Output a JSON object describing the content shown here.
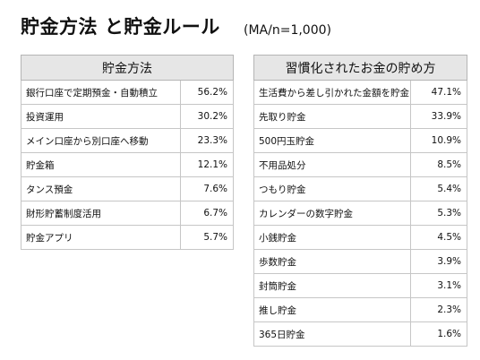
{
  "title": "貯金方法 と貯金ルール",
  "subtitle": "(MA/n=1,000)",
  "left_table": {
    "header": "貯金方法",
    "rows": [
      {
        "label": "銀行口座で定期預金・自動積立",
        "value": "56.2%"
      },
      {
        "label": "投資運用",
        "value": "30.2%"
      },
      {
        "label": "メイン口座から別口座へ移動",
        "value": "23.3%"
      },
      {
        "label": "貯金箱",
        "value": "12.1%"
      },
      {
        "label": "タンス預金",
        "value": "7.6%"
      },
      {
        "label": "財形貯蓄制度活用",
        "value": "6.7%"
      },
      {
        "label": "貯金アプリ",
        "value": "5.7%"
      }
    ]
  },
  "right_table": {
    "header": "習慣化されたお金の貯め方",
    "rows": [
      {
        "label": "生活費から差し引かれた金額を貯金",
        "value": "47.1%"
      },
      {
        "label": "先取り貯金",
        "value": "33.9%"
      },
      {
        "label": "500円玉貯金",
        "value": "10.9%"
      },
      {
        "label": "不用品処分",
        "value": "8.5%"
      },
      {
        "label": "つもり貯金",
        "value": "5.4%"
      },
      {
        "label": "カレンダーの数字貯金",
        "value": "5.3%"
      },
      {
        "label": "小銭貯金",
        "value": "4.5%"
      },
      {
        "label": "歩数貯金",
        "value": "3.9%"
      },
      {
        "label": "封筒貯金",
        "value": "3.1%"
      },
      {
        "label": "推し貯金",
        "value": "2.3%"
      },
      {
        "label": "365日貯金",
        "value": "1.6%"
      }
    ]
  }
}
